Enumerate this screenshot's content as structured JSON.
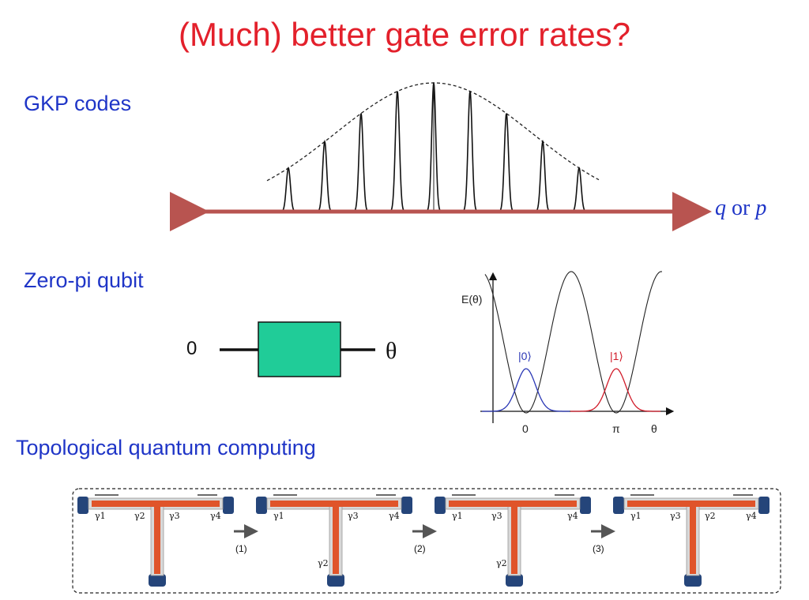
{
  "title": "(Much) better gate error rates?",
  "sections": {
    "gkp": {
      "label": "GKP codes",
      "axis_var_q": "q",
      "axis_or": "or",
      "axis_var_p": "p"
    },
    "zero_pi": {
      "label": "Zero-pi qubit",
      "input_label": "0",
      "output_label": "θ"
    },
    "topological": {
      "label": "Topological quantum computing"
    }
  },
  "potential_plot": {
    "ylabel": "E(θ)",
    "state0_label": "|0⟩",
    "state1_label": "|1⟩",
    "xticks": [
      "0",
      "π"
    ],
    "xlabel": "θ"
  },
  "braiding": {
    "steps": [
      "(1)",
      "(2)",
      "(3)"
    ],
    "frames": [
      {
        "left": [
          "γ1",
          "γ2"
        ],
        "right": [
          "γ3",
          "γ4"
        ],
        "bottom": ""
      },
      {
        "left": [
          "γ1",
          ""
        ],
        "right": [
          "γ3",
          "γ4"
        ],
        "bottom": "γ2"
      },
      {
        "left": [
          "γ1",
          "γ3"
        ],
        "right": [
          "",
          "γ4"
        ],
        "bottom": "γ2"
      },
      {
        "left": [
          "γ1",
          "γ3"
        ],
        "right": [
          "γ2",
          "γ4"
        ],
        "bottom": ""
      }
    ]
  },
  "colors": {
    "title": "#e3202b",
    "section": "#1f35c7",
    "arrow": "#b85450",
    "gate_fill": "#20cc98",
    "state0": "#2a37b5",
    "state1": "#d11c2a",
    "wire": "#e0542a",
    "electrode": "#25457a"
  }
}
